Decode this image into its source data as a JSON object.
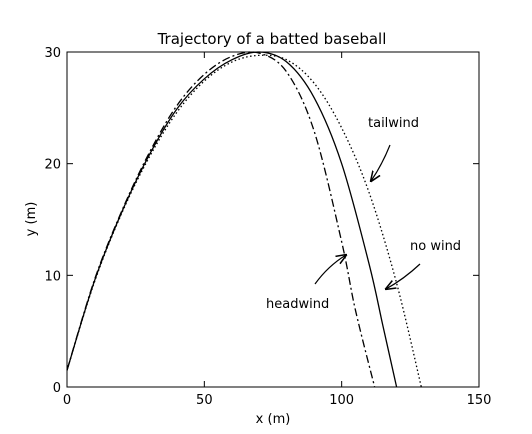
{
  "chart_data": {
    "type": "line",
    "title": "Trajectory of a batted baseball",
    "xlabel": "x (m)",
    "ylabel": "y (m)",
    "xlim": [
      0,
      150
    ],
    "ylim": [
      0,
      30
    ],
    "xticks": [
      0,
      50,
      100,
      150
    ],
    "yticks": [
      0,
      10,
      20,
      30
    ],
    "grid": false,
    "series": [
      {
        "name": "no wind",
        "style": "solid",
        "x": [
          0,
          10,
          20,
          30,
          40,
          50,
          60,
          70,
          80,
          90,
          100,
          110,
          115,
          120
        ],
        "y": [
          1.5,
          9.5,
          15.7,
          20.8,
          24.9,
          27.6,
          29.3,
          30.0,
          29.1,
          25.9,
          20.0,
          11.0,
          5.5,
          0
        ]
      },
      {
        "name": "tailwind",
        "style": "dotted",
        "x": [
          0,
          10,
          20,
          30,
          40,
          50,
          60,
          70,
          80,
          90,
          100,
          110,
          120,
          129
        ],
        "y": [
          1.5,
          9.4,
          15.6,
          20.6,
          24.6,
          27.4,
          29.1,
          29.7,
          29.3,
          27.2,
          23.2,
          17.4,
          9.3,
          0
        ]
      },
      {
        "name": "headwind",
        "style": "dashdot",
        "x": [
          0,
          10,
          20,
          30,
          40,
          50,
          60,
          70,
          80,
          90,
          100,
          105,
          112
        ],
        "y": [
          1.5,
          9.6,
          15.8,
          21.0,
          25.2,
          28.0,
          29.6,
          29.9,
          28.2,
          22.9,
          13.0,
          6.9,
          0
        ]
      }
    ],
    "annotations": [
      {
        "text": "tailwind",
        "arrow_to": [
          111,
          18
        ]
      },
      {
        "text": "no wind",
        "arrow_to": [
          116,
          8.5
        ]
      },
      {
        "text": "headwind",
        "arrow_to": [
          102,
          12
        ]
      }
    ]
  }
}
